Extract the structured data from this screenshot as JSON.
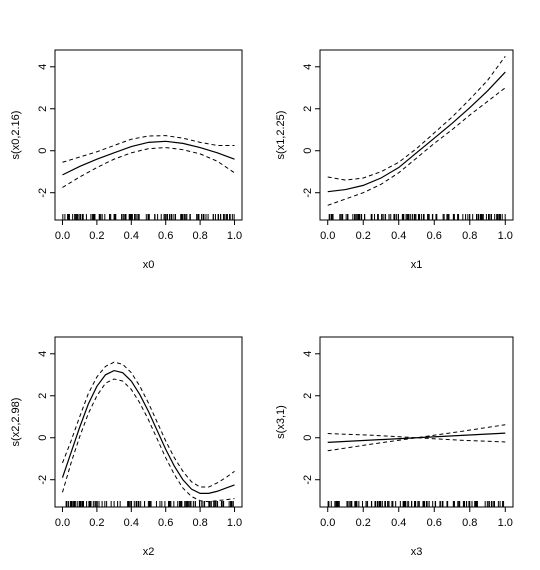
{
  "chart_data": [
    {
      "type": "line",
      "title": "",
      "xlabel": "x0",
      "ylabel": "s(x0,2.16)",
      "xlim": [
        0,
        1
      ],
      "ylim": [
        -3.3,
        4.8
      ],
      "x_ticks": [
        "0.0",
        "0.2",
        "0.4",
        "0.6",
        "0.8",
        "1.0"
      ],
      "y_ticks": [
        "-2",
        "0",
        "2",
        "4"
      ],
      "grid": false,
      "rug": true,
      "series": [
        {
          "style": "solid",
          "x": [
            0,
            0.1,
            0.2,
            0.3,
            0.4,
            0.5,
            0.6,
            0.7,
            0.8,
            0.9,
            1.0
          ],
          "y": [
            -1.15,
            -0.75,
            -0.4,
            -0.1,
            0.2,
            0.4,
            0.45,
            0.35,
            0.15,
            -0.1,
            -0.4
          ]
        },
        {
          "style": "dashed",
          "x": [
            0,
            0.1,
            0.2,
            0.3,
            0.4,
            0.5,
            0.6,
            0.7,
            0.8,
            0.9,
            1.0
          ],
          "y": [
            -0.55,
            -0.3,
            -0.05,
            0.25,
            0.55,
            0.7,
            0.72,
            0.6,
            0.4,
            0.25,
            0.25
          ]
        },
        {
          "style": "dashed",
          "x": [
            0,
            0.1,
            0.2,
            0.3,
            0.4,
            0.5,
            0.6,
            0.7,
            0.8,
            0.9,
            1.0
          ],
          "y": [
            -1.75,
            -1.25,
            -0.8,
            -0.4,
            -0.1,
            0.1,
            0.15,
            0.05,
            -0.15,
            -0.5,
            -1.05
          ]
        }
      ]
    },
    {
      "type": "line",
      "title": "",
      "xlabel": "x1",
      "ylabel": "s(x1,2.25)",
      "xlim": [
        0,
        1
      ],
      "ylim": [
        -3.3,
        4.8
      ],
      "x_ticks": [
        "0.0",
        "0.2",
        "0.4",
        "0.6",
        "0.8",
        "1.0"
      ],
      "y_ticks": [
        "-2",
        "0",
        "2",
        "4"
      ],
      "grid": false,
      "rug": true,
      "series": [
        {
          "style": "solid",
          "x": [
            0,
            0.1,
            0.2,
            0.3,
            0.4,
            0.5,
            0.6,
            0.7,
            0.8,
            0.9,
            1.0
          ],
          "y": [
            -1.95,
            -1.85,
            -1.65,
            -1.3,
            -0.8,
            -0.1,
            0.6,
            1.3,
            2.05,
            2.85,
            3.75
          ]
        },
        {
          "style": "dashed",
          "x": [
            0,
            0.1,
            0.2,
            0.3,
            0.4,
            0.5,
            0.6,
            0.7,
            0.8,
            0.9,
            1.0
          ],
          "y": [
            -1.25,
            -1.4,
            -1.3,
            -1.0,
            -0.55,
            0.1,
            0.85,
            1.6,
            2.45,
            3.35,
            4.5
          ]
        },
        {
          "style": "dashed",
          "x": [
            0,
            0.1,
            0.2,
            0.3,
            0.4,
            0.5,
            0.6,
            0.7,
            0.8,
            0.9,
            1.0
          ],
          "y": [
            -2.6,
            -2.3,
            -2.0,
            -1.6,
            -1.05,
            -0.35,
            0.35,
            1.0,
            1.7,
            2.35,
            3.0
          ]
        }
      ]
    },
    {
      "type": "line",
      "title": "",
      "xlabel": "x2",
      "ylabel": "s(x2,2.98)",
      "xlim": [
        0,
        1
      ],
      "ylim": [
        -3.3,
        4.8
      ],
      "x_ticks": [
        "0.0",
        "0.2",
        "0.4",
        "0.6",
        "0.8",
        "1.0"
      ],
      "y_ticks": [
        "-2",
        "0",
        "2",
        "4"
      ],
      "grid": false,
      "rug": true,
      "series": [
        {
          "style": "solid",
          "x": [
            0,
            0.05,
            0.1,
            0.15,
            0.2,
            0.25,
            0.3,
            0.35,
            0.4,
            0.45,
            0.5,
            0.55,
            0.6,
            0.65,
            0.7,
            0.75,
            0.8,
            0.85,
            0.9,
            0.95,
            1.0
          ],
          "y": [
            -1.9,
            -0.7,
            0.5,
            1.6,
            2.45,
            3.0,
            3.2,
            3.1,
            2.7,
            2.05,
            1.25,
            0.35,
            -0.55,
            -1.35,
            -2.0,
            -2.45,
            -2.65,
            -2.65,
            -2.55,
            -2.4,
            -2.25
          ]
        },
        {
          "style": "dashed",
          "x": [
            0,
            0.05,
            0.1,
            0.15,
            0.2,
            0.25,
            0.3,
            0.35,
            0.4,
            0.45,
            0.5,
            0.55,
            0.6,
            0.65,
            0.7,
            0.75,
            0.8,
            0.85,
            0.9,
            0.95,
            1.0
          ],
          "y": [
            -1.2,
            -0.15,
            1.0,
            2.1,
            2.9,
            3.4,
            3.6,
            3.5,
            3.1,
            2.45,
            1.65,
            0.75,
            -0.15,
            -0.95,
            -1.6,
            -2.1,
            -2.35,
            -2.35,
            -2.15,
            -1.9,
            -1.6
          ]
        },
        {
          "style": "dashed",
          "x": [
            0,
            0.05,
            0.1,
            0.15,
            0.2,
            0.25,
            0.3,
            0.35,
            0.4,
            0.45,
            0.5,
            0.55,
            0.6,
            0.65,
            0.7,
            0.75,
            0.8,
            0.85,
            0.9,
            0.95,
            1.0
          ],
          "y": [
            -2.6,
            -1.2,
            0.05,
            1.15,
            2.0,
            2.6,
            2.8,
            2.7,
            2.3,
            1.65,
            0.85,
            -0.05,
            -0.95,
            -1.75,
            -2.4,
            -2.8,
            -3.0,
            -3.05,
            -3.0,
            -2.95,
            -2.9
          ]
        }
      ]
    },
    {
      "type": "line",
      "title": "",
      "xlabel": "x3",
      "ylabel": "s(x3,1)",
      "xlim": [
        0,
        1
      ],
      "ylim": [
        -3.3,
        4.8
      ],
      "x_ticks": [
        "0.0",
        "0.2",
        "0.4",
        "0.6",
        "0.8",
        "1.0"
      ],
      "y_ticks": [
        "-2",
        "0",
        "2",
        "4"
      ],
      "grid": false,
      "rug": true,
      "series": [
        {
          "style": "solid",
          "x": [
            0,
            0.5,
            1.0
          ],
          "y": [
            -0.22,
            0.0,
            0.22
          ]
        },
        {
          "style": "dashed",
          "x": [
            0,
            0.25,
            0.5,
            0.75,
            1.0
          ],
          "y": [
            0.2,
            0.12,
            0.0,
            0.3,
            0.62
          ]
        },
        {
          "style": "dashed",
          "x": [
            0,
            0.25,
            0.5,
            0.75,
            1.0
          ],
          "y": [
            -0.62,
            -0.3,
            0.0,
            -0.12,
            -0.2
          ]
        }
      ]
    }
  ]
}
